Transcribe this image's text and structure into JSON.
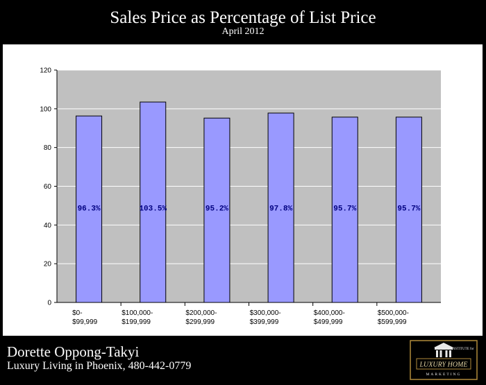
{
  "header": {
    "title": "Sales Price as Percentage of List Price",
    "subtitle": "April 2012"
  },
  "footer": {
    "agent_name": "Dorette Oppong-Takyi",
    "tagline": "Luxury Living in Phoenix, 480-442-0779",
    "logo": {
      "line1": "THE INSTITUTE for",
      "line2": "LUXURY HOME",
      "line3": "MARKETING"
    }
  },
  "colors": {
    "plot_bg": "#c0c0c0",
    "bar_fill": "#9999ff",
    "data_label": "#000080"
  },
  "chart_data": {
    "type": "bar",
    "categories": [
      [
        "$0-",
        "$99,999"
      ],
      [
        "$100,000-",
        "$199,999"
      ],
      [
        "$200,000-",
        "$299,999"
      ],
      [
        "$300,000-",
        "$399,999"
      ],
      [
        "$400,000-",
        "$499,999"
      ],
      [
        "$500,000-",
        "$599,999"
      ]
    ],
    "values": [
      96.3,
      103.5,
      95.2,
      97.8,
      95.7,
      95.7
    ],
    "data_labels": [
      "96.3%",
      "103.5%",
      "95.2%",
      "97.8%",
      "95.7%",
      "95.7%"
    ],
    "title": "Sales Price as Percentage of List Price",
    "subtitle": "April 2012",
    "xlabel": "",
    "ylabel": "",
    "ylim": [
      0,
      120
    ],
    "yticks": [
      0,
      20,
      40,
      60,
      80,
      100,
      120
    ],
    "grid": true,
    "legend": "none"
  }
}
